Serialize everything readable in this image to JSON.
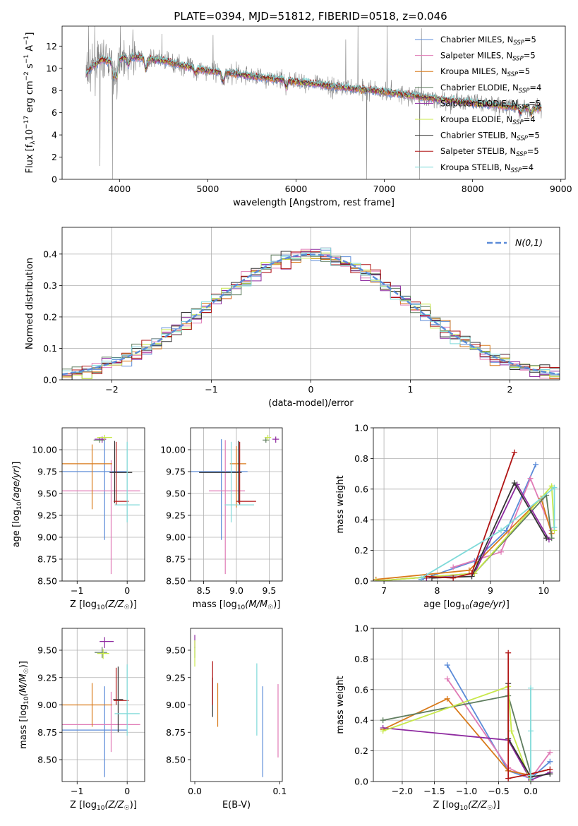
{
  "figure": {
    "title": "PLATE=0394, MJD=51812, FIBERID=0518, z=0.046"
  },
  "legend_fits": [
    {
      "label": "Chabrier MILES, N_SSP=5",
      "color": "#5b8bd8"
    },
    {
      "label": "Salpeter MILES, N_SSP=5",
      "color": "#e07bb6"
    },
    {
      "label": "Kroupa MILES, N_SSP=5",
      "color": "#d97a1a"
    },
    {
      "label": "Chabrier ELODIE, N_SSP=4",
      "color": "#5f7d5f"
    },
    {
      "label": "Salpeter ELODIE, N_SSP=5",
      "color": "#8e2aa0"
    },
    {
      "label": "Kroupa ELODIE, N_SSP=4",
      "color": "#c8e84a"
    },
    {
      "label": "Chabrier STELIB, N_SSP=5",
      "color": "#333333"
    },
    {
      "label": "Salpeter STELIB, N_SSP=5",
      "color": "#b01414"
    },
    {
      "label": "Kroupa STELIB, N_SSP=4",
      "color": "#7fdad9"
    }
  ],
  "chart_data": [
    {
      "id": "spectrum",
      "type": "line",
      "title": "PLATE=0394, MJD=51812, FIBERID=0518, z=0.046",
      "xlabel": "wavelength [Angstrom, rest frame]",
      "ylabel": "Flux [f_λ 10^-17 erg cm^-2 s^-1 A^-1]",
      "xlim": [
        3350,
        9050
      ],
      "ylim": [
        0,
        13.8
      ],
      "xticks": [
        4000,
        5000,
        6000,
        7000,
        8000,
        9000
      ],
      "yticks": [
        0,
        2,
        4,
        6,
        8,
        10,
        12
      ],
      "grid": false,
      "legend": "right",
      "data_color": "#808080",
      "continuum": [
        [
          3620,
          9.5
        ],
        [
          3700,
          10.2
        ],
        [
          3800,
          10.8
        ],
        [
          3900,
          10.6
        ],
        [
          4000,
          10.8
        ],
        [
          4100,
          11.1
        ],
        [
          4300,
          10.9
        ],
        [
          4500,
          10.7
        ],
        [
          4700,
          10.3
        ],
        [
          5000,
          9.8
        ],
        [
          5500,
          9.3
        ],
        [
          6000,
          8.8
        ],
        [
          6500,
          8.3
        ],
        [
          7000,
          7.9
        ],
        [
          7500,
          7.3
        ],
        [
          8000,
          6.9
        ],
        [
          8500,
          6.5
        ],
        [
          8780,
          6.4
        ]
      ],
      "absorption": [
        [
          3934,
          1.5
        ],
        [
          3968,
          1.6
        ],
        [
          4101,
          0.8
        ],
        [
          4300,
          1.0
        ],
        [
          4861,
          0.5
        ],
        [
          5175,
          0.9
        ],
        [
          5890,
          0.6
        ],
        [
          8542,
          0.6
        ],
        [
          8662,
          0.5
        ]
      ],
      "data_spikes": [
        [
          3650,
          13.8
        ],
        [
          3720,
          13.8
        ],
        [
          3780,
          1.2
        ],
        [
          4010,
          13.8
        ],
        [
          4150,
          13.5
        ],
        [
          4480,
          13.1
        ],
        [
          5060,
          13.0
        ],
        [
          6562,
          12.6
        ],
        [
          6700,
          13.8
        ],
        [
          7030,
          13.8
        ],
        [
          7420,
          13.6
        ]
      ],
      "data_dips": [
        [
          3920,
          0
        ],
        [
          6800,
          0
        ],
        [
          7400,
          0
        ]
      ],
      "noise_amp": 0.7
    },
    {
      "id": "residuals",
      "type": "histogram",
      "xlabel": "(data-model)/error",
      "ylabel": "Normed distribution",
      "xlim": [
        -2.5,
        2.5
      ],
      "ylim": [
        0,
        0.485
      ],
      "xticks": [
        -2,
        -1,
        0,
        1,
        2
      ],
      "yticks": [
        0,
        0.1,
        0.2,
        0.3,
        0.4
      ],
      "bin_width": 0.1,
      "grid": true,
      "reference_label": "N(0,1)",
      "reference_color": "#5b8bd8",
      "legend": "top-right"
    },
    {
      "id": "age_vs_Z",
      "type": "scatter",
      "xlabel": "Z [log10(Z/Z☉)]",
      "ylabel": "age [log10(age/yr)]",
      "xlim": [
        -1.3,
        0.35
      ],
      "ylim": [
        8.5,
        10.25
      ],
      "xticks": [
        -1,
        0
      ],
      "yticks": [
        8.5,
        8.75,
        9.0,
        9.25,
        9.5,
        9.75,
        10.0
      ],
      "grid": true,
      "points": [
        {
          "series": "Chabrier MILES",
          "x": -0.45,
          "y": 9.75,
          "xerr": [
            0.95,
            0.45
          ],
          "yerr": [
            0.78,
            0.37
          ]
        },
        {
          "series": "Salpeter MILES",
          "x": -0.32,
          "y": 9.53,
          "xerr": [
            1.1,
            0.58
          ],
          "yerr": [
            0.95,
            0.35
          ]
        },
        {
          "series": "Kroupa MILES",
          "x": -0.7,
          "y": 9.84,
          "xerr": [
            0.6,
            0.4
          ],
          "yerr": [
            0.52,
            0.22
          ]
        },
        {
          "series": "Chabrier ELODIE",
          "x": -0.55,
          "y": 10.11,
          "xerr": [
            0.12,
            0.1
          ],
          "yerr": [
            0.03,
            0.03
          ]
        },
        {
          "series": "Salpeter ELODIE",
          "x": -0.5,
          "y": 10.12,
          "xerr": [
            0.15,
            0.08
          ],
          "yerr": [
            0.04,
            0.03
          ]
        },
        {
          "series": "Kroupa ELODIE",
          "x": -0.45,
          "y": 10.14,
          "xerr": [
            0.15,
            0.15
          ],
          "yerr": [
            0.03,
            0.03
          ]
        },
        {
          "series": "Chabrier STELIB",
          "x": -0.25,
          "y": 9.74,
          "xerr": [
            0.1,
            0.35
          ],
          "yerr": [
            0.35,
            0.36
          ]
        },
        {
          "series": "Salpeter STELIB",
          "x": -0.22,
          "y": 9.41,
          "xerr": [
            0.05,
            0.25
          ],
          "yerr": [
            0.04,
            0.68
          ]
        },
        {
          "series": "Kroupa STELIB",
          "x": 0.0,
          "y": 9.37,
          "xerr": [
            0.25,
            0.25
          ],
          "yerr": [
            0.2,
            0.72
          ]
        }
      ]
    },
    {
      "id": "age_vs_mass",
      "type": "scatter",
      "xlabel": "mass [log10(M/M☉)]",
      "xlim": [
        8.3,
        9.7
      ],
      "ylim": [
        8.5,
        10.25
      ],
      "xticks": [
        8.5,
        9.0,
        9.5
      ],
      "yticks": [
        8.5,
        8.75,
        9.0,
        9.25,
        9.5,
        9.75,
        10.0
      ],
      "grid": true,
      "points": [
        {
          "series": "Chabrier MILES",
          "x": 8.77,
          "y": 9.75,
          "xerr": [
            0.5,
            0.4
          ],
          "yerr": [
            0.78,
            0.37
          ]
        },
        {
          "series": "Salpeter MILES",
          "x": 8.83,
          "y": 9.53,
          "xerr": [
            0.25,
            0.3
          ],
          "yerr": [
            0.95,
            0.58
          ]
        },
        {
          "series": "Kroupa MILES",
          "x": 9.0,
          "y": 9.84,
          "xerr": [
            0.1,
            0.15
          ],
          "yerr": [
            0.5,
            0.2
          ]
        },
        {
          "series": "Chabrier ELODIE",
          "x": 9.45,
          "y": 10.11,
          "xerr": [
            0.05,
            0.05
          ],
          "yerr": [
            0.03,
            0.03
          ]
        },
        {
          "series": "Salpeter ELODIE",
          "x": 9.6,
          "y": 10.12,
          "xerr": [
            0.05,
            0.05
          ],
          "yerr": [
            0.04,
            0.03
          ]
        },
        {
          "series": "Kroupa ELODIE",
          "x": 9.48,
          "y": 10.14,
          "xerr": [
            0.05,
            0.05
          ],
          "yerr": [
            0.03,
            0.03
          ]
        },
        {
          "series": "Chabrier STELIB",
          "x": 9.03,
          "y": 9.74,
          "xerr": [
            0.6,
            0.05
          ],
          "yerr": [
            0.35,
            0.36
          ]
        },
        {
          "series": "Salpeter STELIB",
          "x": 9.05,
          "y": 9.41,
          "xerr": [
            0.05,
            0.25
          ],
          "yerr": [
            0.04,
            0.68
          ]
        },
        {
          "series": "Kroupa STELIB",
          "x": 8.92,
          "y": 9.37,
          "xerr": [
            0.1,
            0.35
          ],
          "yerr": [
            0.2,
            0.72
          ]
        }
      ]
    },
    {
      "id": "mass_weight_vs_age",
      "type": "line",
      "xlabel": "age [log10(age/yr)]",
      "ylabel": "mass weight",
      "xlim": [
        6.8,
        10.3
      ],
      "ylim": [
        0,
        1
      ],
      "xticks": [
        7,
        8,
        9,
        10
      ],
      "yticks": [
        0,
        0.2,
        0.4,
        0.6,
        0.8,
        1.0
      ],
      "grid": true,
      "series": [
        {
          "name": "Chabrier MILES",
          "x": [
            7.7,
            8.7,
            9.3,
            9.85
          ],
          "y": [
            0.01,
            0.13,
            0.33,
            0.76
          ]
        },
        {
          "name": "Salpeter MILES",
          "x": [
            8.3,
            9.2,
            9.75,
            10.15
          ],
          "y": [
            0.09,
            0.19,
            0.67,
            0.33
          ]
        },
        {
          "name": "Kroupa MILES",
          "x": [
            6.85,
            8.6,
            9.95,
            10.15
          ],
          "y": [
            0.01,
            0.07,
            0.54,
            0.31
          ]
        },
        {
          "name": "Chabrier ELODIE",
          "x": [
            6.85,
            8.7,
            10.05,
            10.15
          ],
          "y": [
            0.0,
            0.05,
            0.56,
            0.28
          ]
        },
        {
          "name": "Salpeter ELODIE",
          "x": [
            7.8,
            8.7,
            9.5,
            10.1
          ],
          "y": [
            0.02,
            0.05,
            0.63,
            0.27
          ]
        },
        {
          "name": "Kroupa ELODIE",
          "x": [
            6.85,
            8.7,
            10.15,
            10.2
          ],
          "y": [
            0.0,
            0.05,
            0.62,
            0.33
          ]
        },
        {
          "name": "Chabrier STELIB",
          "x": [
            7.9,
            8.65,
            9.45,
            10.05
          ],
          "y": [
            0.02,
            0.03,
            0.64,
            0.28
          ]
        },
        {
          "name": "Salpeter STELIB",
          "x": [
            7.8,
            8.3,
            8.65,
            9.45
          ],
          "y": [
            0.03,
            0.02,
            0.05,
            0.84
          ]
        },
        {
          "name": "Kroupa STELIB",
          "x": [
            7.7,
            9.2,
            10.2,
            10.2
          ],
          "y": [
            0.02,
            0.33,
            0.61,
            0.35
          ]
        }
      ]
    },
    {
      "id": "mass_vs_Z",
      "type": "scatter",
      "xlabel": "Z [log10(Z/Z☉)]",
      "ylabel": "mass [log10(M/M☉)]",
      "xlim": [
        -1.3,
        0.35
      ],
      "ylim": [
        8.3,
        9.7
      ],
      "xticks": [
        -1,
        0
      ],
      "yticks": [
        8.5,
        8.75,
        9.0,
        9.25,
        9.5
      ],
      "grid": true,
      "points": [
        {
          "series": "Chabrier MILES",
          "x": -0.45,
          "y": 8.77,
          "xerr": [
            0.95,
            0.45
          ],
          "yerr": [
            0.43,
            0.4
          ]
        },
        {
          "series": "Salpeter MILES",
          "x": -0.32,
          "y": 8.82,
          "xerr": [
            1.1,
            0.58
          ],
          "yerr": [
            0.25,
            0.3
          ]
        },
        {
          "series": "Kroupa MILES",
          "x": -0.7,
          "y": 9.0,
          "xerr": [
            0.6,
            0.4
          ],
          "yerr": [
            0.2,
            0.2
          ]
        },
        {
          "series": "Chabrier ELODIE",
          "x": -0.5,
          "y": 9.48,
          "xerr": [
            0.15,
            0.1
          ],
          "yerr": [
            0.05,
            0.05
          ]
        },
        {
          "series": "Salpeter ELODIE",
          "x": -0.45,
          "y": 9.58,
          "xerr": [
            0.1,
            0.18
          ],
          "yerr": [
            0.06,
            0.04
          ]
        },
        {
          "series": "Kroupa ELODIE",
          "x": -0.48,
          "y": 9.47,
          "xerr": [
            0.12,
            0.12
          ],
          "yerr": [
            0.05,
            0.04
          ]
        },
        {
          "series": "Chabrier STELIB",
          "x": -0.18,
          "y": 9.05,
          "xerr": [
            0.1,
            0.1
          ],
          "yerr": [
            0.3,
            0.3
          ]
        },
        {
          "series": "Salpeter STELIB",
          "x": -0.22,
          "y": 9.04,
          "xerr": [
            0.05,
            0.25
          ],
          "yerr": [
            0.04,
            0.3
          ]
        },
        {
          "series": "Kroupa STELIB",
          "x": 0.0,
          "y": 8.92,
          "xerr": [
            0.25,
            0.25
          ],
          "yerr": [
            0.2,
            0.45
          ]
        }
      ]
    },
    {
      "id": "mass_vs_EBV",
      "type": "scatter",
      "xlabel": "E(B-V)",
      "xlim": [
        -0.005,
        0.103
      ],
      "ylim": [
        8.3,
        9.7
      ],
      "xticks": [
        0.0,
        0.1
      ],
      "yticks": [
        8.5,
        8.75,
        9.0,
        9.25,
        9.5
      ],
      "grid": false,
      "points": [
        {
          "series": "Chabrier MILES",
          "x": 0.08,
          "y": 8.77,
          "yerr": [
            0.43,
            0.4
          ]
        },
        {
          "series": "Salpeter MILES",
          "x": 0.098,
          "y": 8.82,
          "yerr": [
            0.3,
            0.37
          ]
        },
        {
          "series": "Kroupa MILES",
          "x": 0.027,
          "y": 9.0,
          "yerr": [
            0.2,
            0.2
          ]
        },
        {
          "series": "Chabrier ELODIE",
          "x": 0.0,
          "y": 9.48,
          "yerr": [
            0.05,
            0.05
          ]
        },
        {
          "series": "Salpeter ELODIE",
          "x": 0.0,
          "y": 9.58,
          "yerr": [
            0.06,
            0.06
          ]
        },
        {
          "series": "Kroupa ELODIE",
          "x": 0.0,
          "y": 9.47,
          "yerr": [
            0.12,
            0.12
          ]
        },
        {
          "series": "Chabrier STELIB",
          "x": 0.021,
          "y": 9.05,
          "yerr": [
            0.16,
            0.2
          ]
        },
        {
          "series": "Salpeter STELIB",
          "x": 0.021,
          "y": 9.1,
          "yerr": [
            0.1,
            0.3
          ]
        },
        {
          "series": "Kroupa STELIB",
          "x": 0.073,
          "y": 8.92,
          "yerr": [
            0.2,
            0.46
          ]
        }
      ]
    },
    {
      "id": "mass_weight_vs_Z",
      "type": "line",
      "xlabel": "Z [log10(Z/Z☉)]",
      "ylabel": "mass weight",
      "xlim": [
        -2.45,
        0.45
      ],
      "ylim": [
        0,
        1
      ],
      "xticks": [
        -2.0,
        -1.5,
        -1.0,
        -0.5,
        0.0
      ],
      "yticks": [
        0,
        0.2,
        0.4,
        0.6,
        0.8,
        1.0
      ],
      "grid": true,
      "series": [
        {
          "name": "Chabrier MILES",
          "x": [
            -1.3,
            -0.35,
            0.0,
            0.3
          ],
          "y": [
            0.76,
            0.07,
            0.02,
            0.13
          ]
        },
        {
          "name": "Salpeter MILES",
          "x": [
            -1.3,
            -0.35,
            0.0,
            0.3
          ],
          "y": [
            0.67,
            0.09,
            0.02,
            0.19
          ]
        },
        {
          "name": "Kroupa MILES",
          "x": [
            -2.3,
            -1.3,
            -0.35,
            0.0
          ],
          "y": [
            0.34,
            0.54,
            0.07,
            0.04
          ]
        },
        {
          "name": "Chabrier ELODIE",
          "x": [
            -2.3,
            -0.35,
            0.0,
            0.0
          ],
          "y": [
            0.4,
            0.56,
            0.05,
            0.0
          ]
        },
        {
          "name": "Salpeter ELODIE",
          "x": [
            -2.3,
            -0.35,
            0.0,
            0.3
          ],
          "y": [
            0.35,
            0.27,
            0.01,
            0.06
          ]
        },
        {
          "name": "Kroupa ELODIE",
          "x": [
            -2.3,
            -0.35,
            -0.3,
            0.0
          ],
          "y": [
            0.33,
            0.62,
            0.33,
            0.0
          ]
        },
        {
          "name": "Chabrier STELIB",
          "x": [
            -0.35,
            -0.35,
            0.0,
            0.3
          ],
          "y": [
            0.64,
            0.28,
            0.03,
            0.05
          ]
        },
        {
          "name": "Salpeter STELIB",
          "x": [
            -0.35,
            -0.35,
            0.0,
            0.3
          ],
          "y": [
            0.84,
            0.02,
            0.05,
            0.08
          ]
        },
        {
          "name": "Kroupa STELIB",
          "x": [
            0.0,
            0.0,
            0.0,
            0.0
          ],
          "y": [
            0.61,
            0.33,
            0.04,
            0.02
          ]
        }
      ]
    }
  ]
}
